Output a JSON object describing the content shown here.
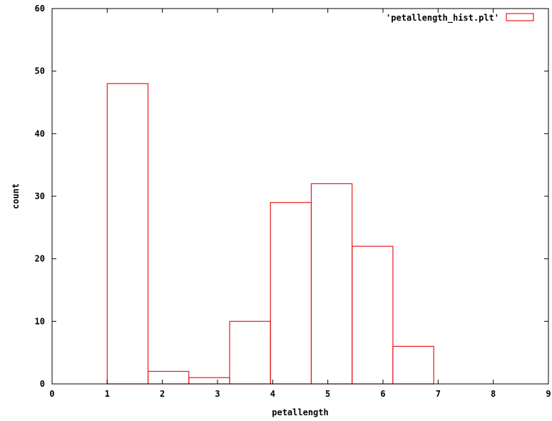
{
  "chart_data": {
    "type": "bar",
    "title": "",
    "xlabel": "petallength",
    "ylabel": "count",
    "xlim": [
      0,
      9
    ],
    "ylim": [
      0,
      60
    ],
    "x_ticks": [
      0,
      1,
      2,
      3,
      4,
      5,
      6,
      7,
      8,
      9
    ],
    "y_ticks": [
      0,
      10,
      20,
      30,
      40,
      50,
      60
    ],
    "grid": false,
    "legend_position": "top-right",
    "colors": {
      "series": "#e41a1c",
      "axes": "#000000"
    },
    "series": [
      {
        "name": "'petallength_hist.plt'",
        "bins": [
          {
            "x0": 1.0,
            "x1": 1.74,
            "value": 48
          },
          {
            "x0": 1.74,
            "x1": 2.48,
            "value": 2
          },
          {
            "x0": 2.48,
            "x1": 3.22,
            "value": 1
          },
          {
            "x0": 3.22,
            "x1": 3.96,
            "value": 10
          },
          {
            "x0": 3.96,
            "x1": 4.7,
            "value": 29
          },
          {
            "x0": 4.7,
            "x1": 5.44,
            "value": 32
          },
          {
            "x0": 5.44,
            "x1": 6.18,
            "value": 22
          },
          {
            "x0": 6.18,
            "x1": 6.92,
            "value": 6
          }
        ]
      }
    ]
  }
}
